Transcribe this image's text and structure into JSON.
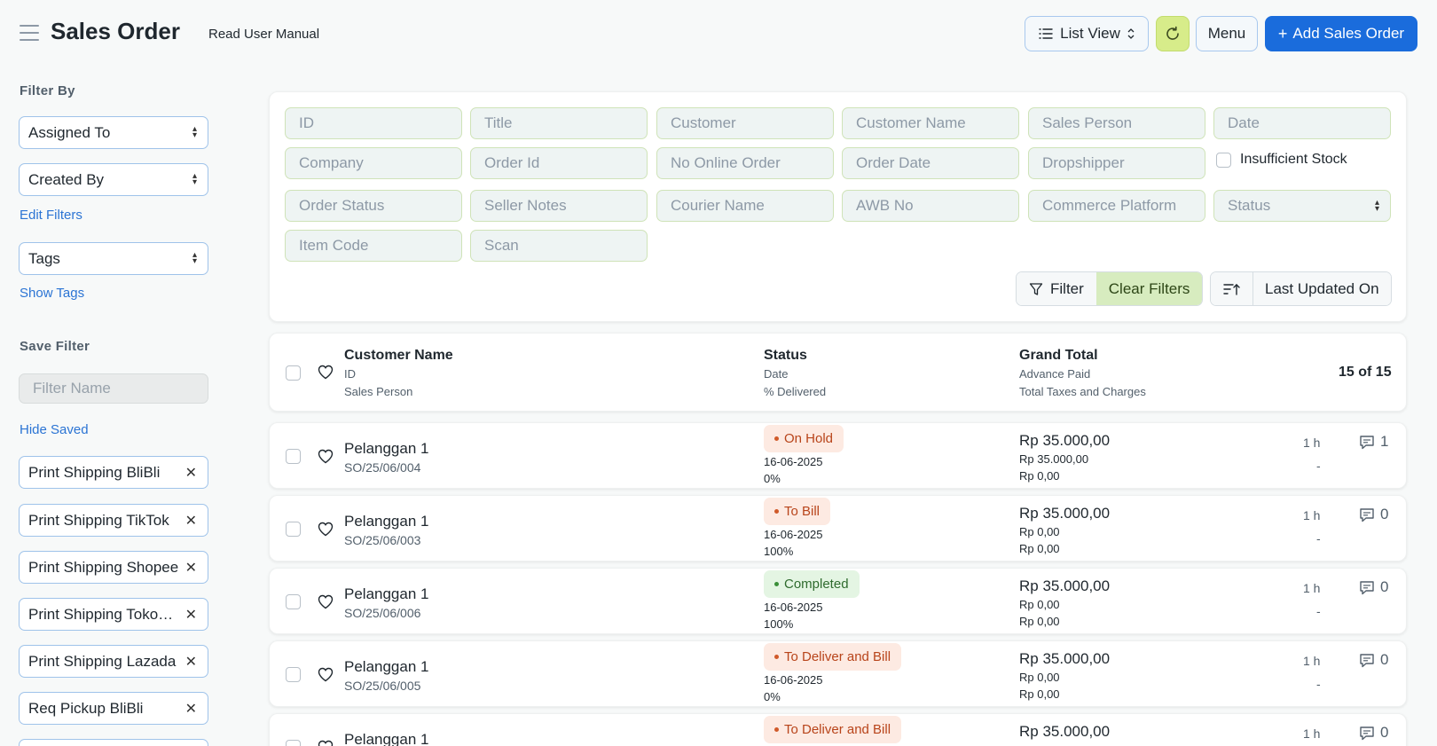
{
  "header": {
    "title": "Sales Order",
    "manual_link": "Read User Manual",
    "list_view_label": "List View",
    "menu_label": "Menu",
    "add_label": "Add Sales Order"
  },
  "sidebar": {
    "filter_by_heading": "Filter By",
    "assigned_to": "Assigned To",
    "created_by": "Created By",
    "edit_filters": "Edit Filters",
    "tags": "Tags",
    "show_tags": "Show Tags",
    "save_filter_heading": "Save Filter",
    "filter_name_placeholder": "Filter Name",
    "hide_saved": "Hide Saved",
    "saved_filters": [
      "Print Shipping BliBli",
      "Print Shipping TikTok",
      "Print Shipping Shopee",
      "Print Shipping Tokopedia",
      "Print Shipping Lazada",
      "Req Pickup BliBli"
    ]
  },
  "filters": {
    "fields": [
      "ID",
      "Title",
      "Customer",
      "Customer Name",
      "Sales Person",
      "Date",
      "Company",
      "Order Id",
      "No Online Order",
      "Order Date",
      "Dropshipper",
      "Order Status",
      "Seller Notes",
      "Courier Name",
      "AWB No",
      "Commerce Platform",
      "Status",
      "Item Code",
      "Scan"
    ],
    "insufficient_stock": "Insufficient Stock",
    "filter_button": "Filter",
    "clear_filters": "Clear Filters",
    "sort_label": "Last Updated On"
  },
  "list_header": {
    "customer_name": "Customer Name",
    "id": "ID",
    "sales_person": "Sales Person",
    "status": "Status",
    "date": "Date",
    "delivered": "% Delivered",
    "grand_total": "Grand Total",
    "advance_paid": "Advance Paid",
    "total_taxes": "Total Taxes and Charges",
    "count": "15 of 15"
  },
  "rows": [
    {
      "customer": "Pelanggan 1",
      "id": "SO/25/06/004",
      "status": "On Hold",
      "status_color": "orange",
      "date": "16-06-2025",
      "delivered": "0%",
      "grand_total": "Rp 35.000,00",
      "advance_paid": "Rp 35.000,00",
      "taxes": "Rp 0,00",
      "time": "1 h",
      "assigned": "-",
      "comments": "1"
    },
    {
      "customer": "Pelanggan 1",
      "id": "SO/25/06/003",
      "status": "To Bill",
      "status_color": "orange",
      "date": "16-06-2025",
      "delivered": "100%",
      "grand_total": "Rp 35.000,00",
      "advance_paid": "Rp 0,00",
      "taxes": "Rp 0,00",
      "time": "1 h",
      "assigned": "-",
      "comments": "0"
    },
    {
      "customer": "Pelanggan 1",
      "id": "SO/25/06/006",
      "status": "Completed",
      "status_color": "green",
      "date": "16-06-2025",
      "delivered": "100%",
      "grand_total": "Rp 35.000,00",
      "advance_paid": "Rp 0,00",
      "taxes": "Rp 0,00",
      "time": "1 h",
      "assigned": "-",
      "comments": "0"
    },
    {
      "customer": "Pelanggan 1",
      "id": "SO/25/06/005",
      "status": "To Deliver and Bill",
      "status_color": "orange",
      "date": "16-06-2025",
      "delivered": "0%",
      "grand_total": "Rp 35.000,00",
      "advance_paid": "Rp 0,00",
      "taxes": "Rp 0,00",
      "time": "1 h",
      "assigned": "-",
      "comments": "0"
    },
    {
      "customer": "Pelanggan 1",
      "id": "",
      "status": "To Deliver and Bill",
      "status_color": "orange",
      "date": "",
      "delivered": "",
      "grand_total": "Rp 35.000,00",
      "advance_paid": "",
      "taxes": "",
      "time": "1 h",
      "assigned": "",
      "comments": "0"
    }
  ]
}
